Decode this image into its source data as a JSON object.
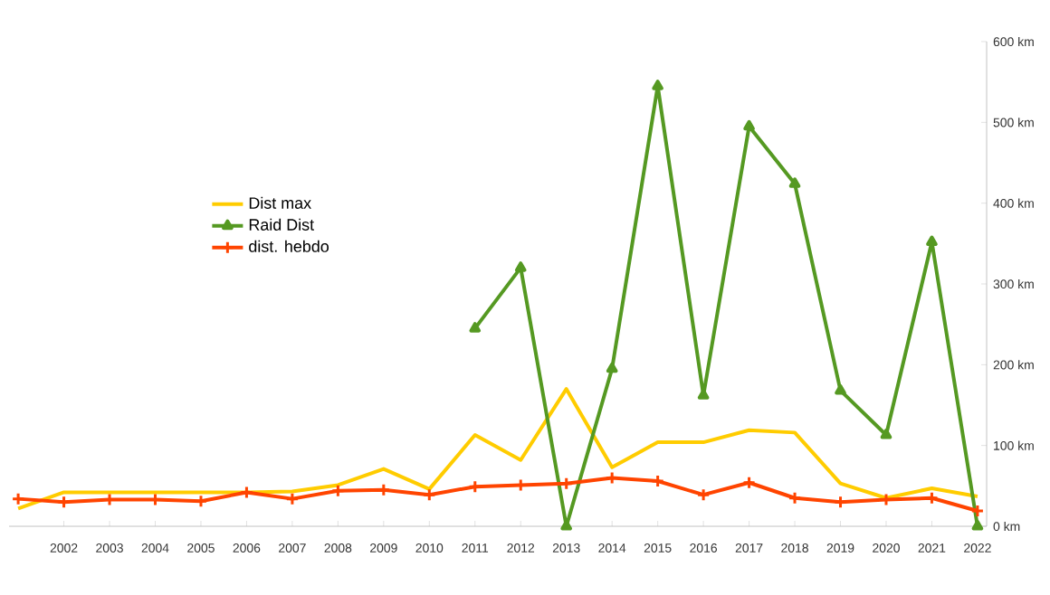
{
  "chart_data": {
    "type": "line",
    "categories": [
      null,
      "2002",
      "2003",
      "2004",
      "2005",
      "2006",
      "2007",
      "2008",
      "2009",
      "2010",
      "2011",
      "2012",
      "2013",
      "2014",
      "2015",
      "2016",
      "2017",
      "2018",
      "2019",
      "2020",
      "2021",
      "2022"
    ],
    "series": [
      {
        "name": "Dist max",
        "color": "#ffcc00",
        "marker": "none",
        "values": [
          22,
          42,
          42,
          42,
          42,
          42,
          43,
          51,
          71,
          46,
          113,
          82,
          170,
          73,
          104,
          104,
          119,
          116,
          53,
          35,
          47,
          37
        ]
      },
      {
        "name": "Raid Dist",
        "color": "#559922",
        "marker": "triangle",
        "values": [
          null,
          null,
          null,
          null,
          null,
          null,
          null,
          null,
          null,
          null,
          245,
          320,
          0,
          195,
          545,
          162,
          495,
          424,
          168,
          113,
          352,
          0
        ]
      },
      {
        "name": "dist. hebdo",
        "color": "#ff4400",
        "marker": "cross",
        "values": [
          34,
          30,
          33,
          33,
          31,
          42,
          34,
          44,
          45,
          39,
          49,
          51,
          53,
          60,
          56,
          39,
          54,
          35,
          30,
          33,
          35,
          19
        ]
      }
    ],
    "ylim": [
      0,
      600
    ],
    "yticks": [
      {
        "value": 0,
        "label": "0 km"
      },
      {
        "value": 100,
        "label": "100 km"
      },
      {
        "value": 200,
        "label": "200 km"
      },
      {
        "value": 300,
        "label": "300 km"
      },
      {
        "value": 400,
        "label": "400 km"
      },
      {
        "value": 500,
        "label": "500 km"
      },
      {
        "value": 600,
        "label": "600 km"
      }
    ],
    "grid": false,
    "legend": "left"
  }
}
